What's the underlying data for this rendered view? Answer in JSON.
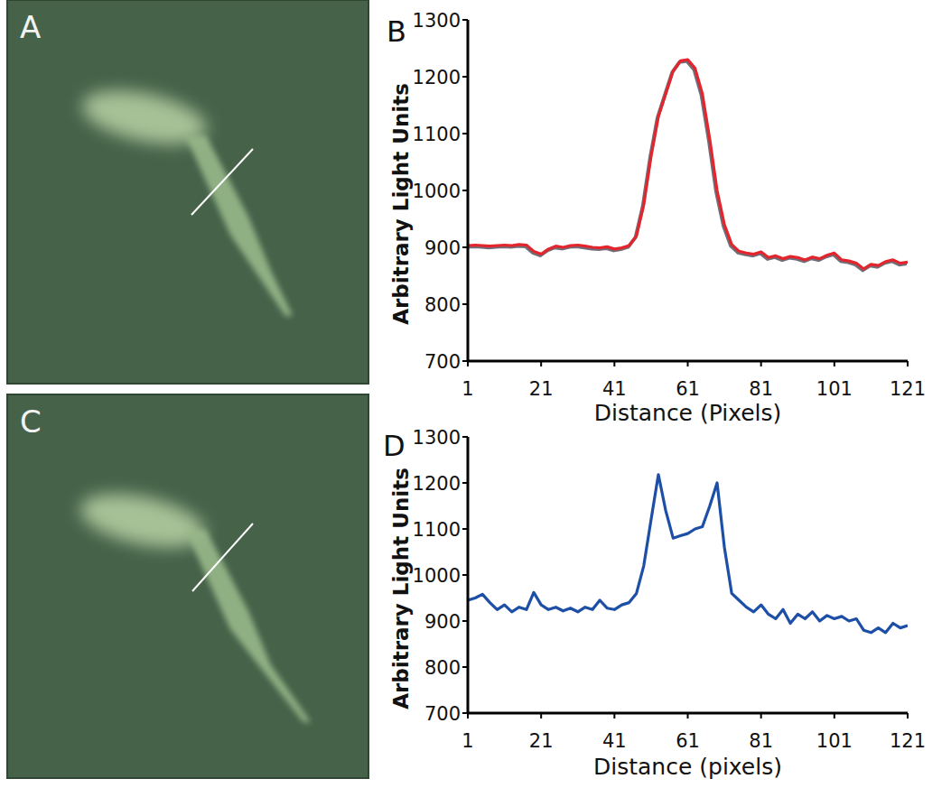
{
  "images": [
    {
      "label": "A"
    },
    {
      "label": "C"
    }
  ],
  "chart_data": [
    {
      "type": "line",
      "title": "B",
      "x_label": "Distance (Pixels)",
      "y_label": "Arbitrary Light Units",
      "color": "#e3262e",
      "xlim": [
        1,
        121
      ],
      "ylim": [
        700,
        1300
      ],
      "xticks": [
        1,
        21,
        41,
        61,
        81,
        101,
        121
      ],
      "yticks": [
        700,
        800,
        900,
        1000,
        1100,
        1200,
        1300
      ],
      "x": [
        1,
        3,
        5,
        7,
        9,
        11,
        13,
        15,
        17,
        19,
        21,
        23,
        25,
        27,
        29,
        31,
        33,
        35,
        37,
        39,
        41,
        43,
        45,
        47,
        49,
        51,
        53,
        55,
        57,
        59,
        61,
        63,
        65,
        67,
        69,
        71,
        73,
        75,
        77,
        79,
        81,
        83,
        85,
        87,
        89,
        91,
        93,
        95,
        97,
        99,
        101,
        103,
        105,
        107,
        109,
        111,
        113,
        115,
        117,
        119,
        121
      ],
      "values": [
        903,
        904,
        903,
        902,
        903,
        904,
        903,
        905,
        904,
        893,
        888,
        897,
        902,
        900,
        903,
        904,
        902,
        900,
        899,
        901,
        897,
        899,
        903,
        920,
        975,
        1060,
        1130,
        1170,
        1210,
        1228,
        1230,
        1215,
        1170,
        1090,
        1000,
        940,
        905,
        893,
        890,
        888,
        892,
        882,
        885,
        880,
        884,
        882,
        878,
        883,
        880,
        886,
        890,
        878,
        876,
        872,
        862,
        870,
        868,
        875,
        878,
        872,
        874
      ]
    },
    {
      "type": "line",
      "title": "D",
      "x_label": "Distance (pixels)",
      "y_label": "Arbitrary Light Units",
      "color": "#1d4fa6",
      "xlim": [
        1,
        121
      ],
      "ylim": [
        700,
        1300
      ],
      "xticks": [
        1,
        21,
        41,
        61,
        81,
        101,
        121
      ],
      "yticks": [
        700,
        800,
        900,
        1000,
        1100,
        1200,
        1300
      ],
      "x": [
        1,
        3,
        5,
        7,
        9,
        11,
        13,
        15,
        17,
        19,
        21,
        23,
        25,
        27,
        29,
        31,
        33,
        35,
        37,
        39,
        41,
        43,
        45,
        47,
        49,
        51,
        53,
        55,
        57,
        59,
        61,
        63,
        65,
        67,
        69,
        71,
        73,
        75,
        77,
        79,
        81,
        83,
        85,
        87,
        89,
        91,
        93,
        95,
        97,
        99,
        101,
        103,
        105,
        107,
        109,
        111,
        113,
        115,
        117,
        119,
        121
      ],
      "values": [
        945,
        950,
        958,
        940,
        925,
        935,
        920,
        930,
        925,
        962,
        935,
        925,
        930,
        922,
        928,
        920,
        930,
        925,
        945,
        928,
        925,
        935,
        940,
        960,
        1020,
        1120,
        1218,
        1140,
        1080,
        1085,
        1090,
        1100,
        1105,
        1150,
        1200,
        1060,
        960,
        945,
        930,
        920,
        935,
        915,
        905,
        925,
        895,
        915,
        905,
        920,
        900,
        912,
        905,
        910,
        900,
        905,
        880,
        875,
        885,
        875,
        895,
        885,
        890
      ]
    }
  ]
}
